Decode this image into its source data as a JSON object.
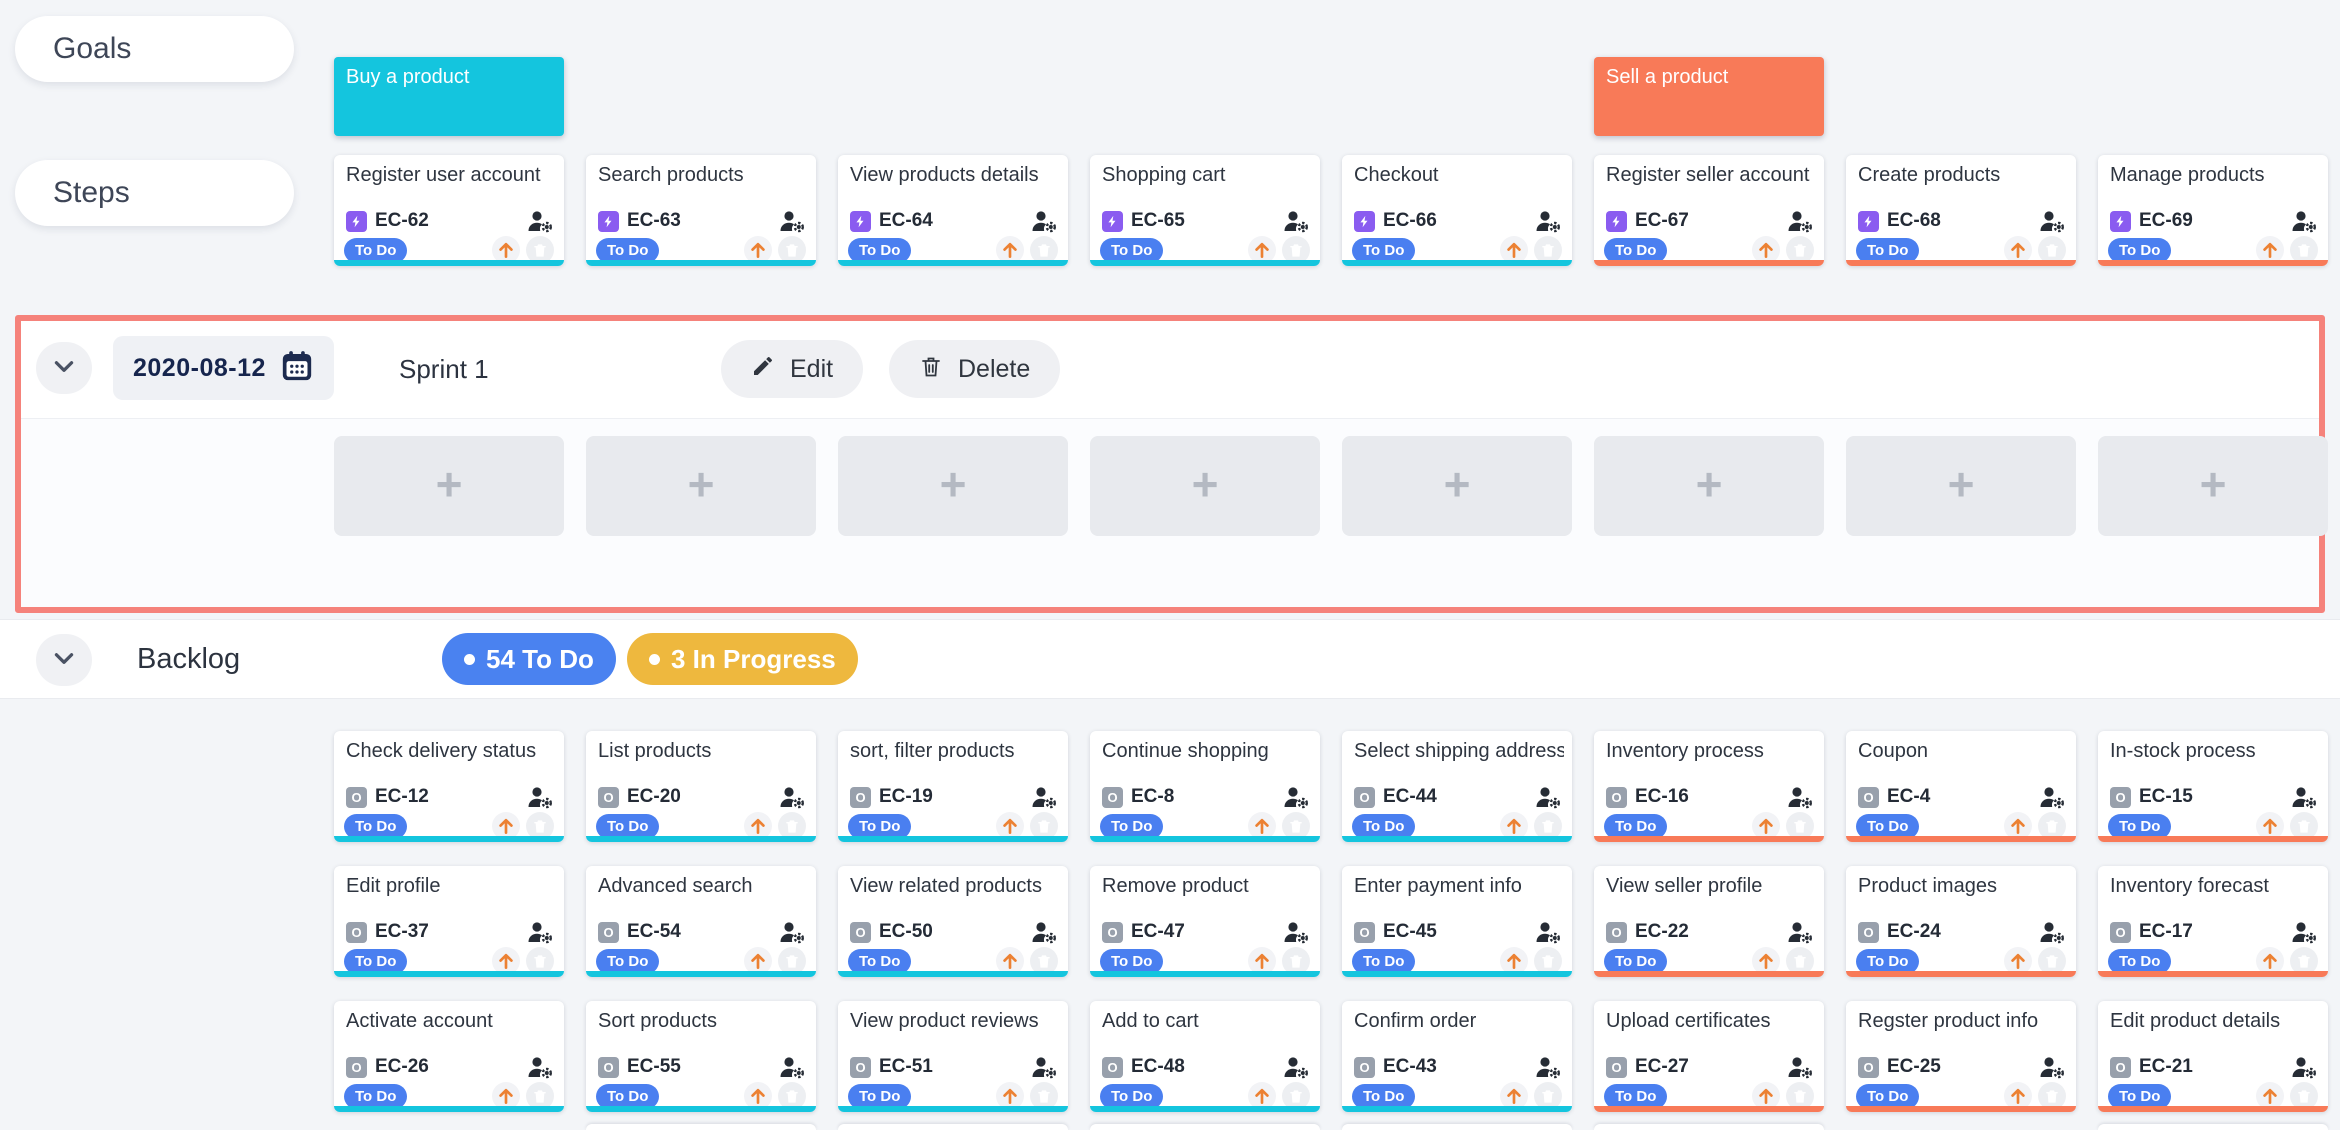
{
  "lanes": {
    "goals_label": "Goals",
    "steps_label": "Steps"
  },
  "themes": {
    "cyan": "#14c5de",
    "orange": "#f87a58"
  },
  "goal_cards": [
    {
      "title": "Buy a product",
      "column": 1,
      "color": "#14c5de"
    },
    {
      "title": "Sell a product",
      "column": 6,
      "color": "#f87a58"
    }
  ],
  "step_cards": [
    {
      "title": "Register user account",
      "id": "EC-62",
      "status": "To Do",
      "type": "epic",
      "theme": "#14c5de"
    },
    {
      "title": "Search products",
      "id": "EC-63",
      "status": "To Do",
      "type": "epic",
      "theme": "#14c5de"
    },
    {
      "title": "View products details",
      "id": "EC-64",
      "status": "To Do",
      "type": "epic",
      "theme": "#14c5de"
    },
    {
      "title": "Shopping cart",
      "id": "EC-65",
      "status": "To Do",
      "type": "epic",
      "theme": "#14c5de"
    },
    {
      "title": "Checkout",
      "id": "EC-66",
      "status": "To Do",
      "type": "epic",
      "theme": "#14c5de"
    },
    {
      "title": "Register seller account",
      "id": "EC-67",
      "status": "To Do",
      "type": "epic",
      "theme": "#f87a58"
    },
    {
      "title": "Create products",
      "id": "EC-68",
      "status": "To Do",
      "type": "epic",
      "theme": "#f87a58"
    },
    {
      "title": "Manage products",
      "id": "EC-69",
      "status": "To Do",
      "type": "epic",
      "theme": "#f87a58"
    }
  ],
  "sprint": {
    "date": "2020-08-12",
    "name": "Sprint 1",
    "edit_label": "Edit",
    "delete_label": "Delete",
    "empty_slot_count": 8,
    "border_color": "#f5827b"
  },
  "backlog": {
    "label": "Backlog",
    "badges": [
      {
        "text": "54 To Do",
        "bg": "#4a82f0"
      },
      {
        "text": "3 In Progress",
        "bg": "#eeb83e"
      }
    ],
    "rows": [
      [
        {
          "title": "Check delivery status",
          "id": "EC-12",
          "status": "To Do",
          "type": "story",
          "theme": "#14c5de"
        },
        {
          "title": "List products",
          "id": "EC-20",
          "status": "To Do",
          "type": "story",
          "theme": "#14c5de"
        },
        {
          "title": "sort, filter products",
          "id": "EC-19",
          "status": "To Do",
          "type": "story",
          "theme": "#14c5de"
        },
        {
          "title": "Continue shopping",
          "id": "EC-8",
          "status": "To Do",
          "type": "story",
          "theme": "#14c5de"
        },
        {
          "title": "Select shipping address",
          "id": "EC-44",
          "status": "To Do",
          "type": "story",
          "theme": "#14c5de"
        },
        {
          "title": "Inventory process",
          "id": "EC-16",
          "status": "To Do",
          "type": "story",
          "theme": "#f87a58"
        },
        {
          "title": "Coupon",
          "id": "EC-4",
          "status": "To Do",
          "type": "story",
          "theme": "#f87a58"
        },
        {
          "title": "In-stock process",
          "id": "EC-15",
          "status": "To Do",
          "type": "story",
          "theme": "#f87a58"
        }
      ],
      [
        {
          "title": "Edit profile",
          "id": "EC-37",
          "status": "To Do",
          "type": "story",
          "theme": "#14c5de"
        },
        {
          "title": "Advanced search",
          "id": "EC-54",
          "status": "To Do",
          "type": "story",
          "theme": "#14c5de"
        },
        {
          "title": "View related products",
          "id": "EC-50",
          "status": "To Do",
          "type": "story",
          "theme": "#14c5de"
        },
        {
          "title": "Remove product",
          "id": "EC-47",
          "status": "To Do",
          "type": "story",
          "theme": "#14c5de"
        },
        {
          "title": "Enter payment info",
          "id": "EC-45",
          "status": "To Do",
          "type": "story",
          "theme": "#14c5de"
        },
        {
          "title": "View seller profile",
          "id": "EC-22",
          "status": "To Do",
          "type": "story",
          "theme": "#f87a58"
        },
        {
          "title": "Product images",
          "id": "EC-24",
          "status": "To Do",
          "type": "story",
          "theme": "#f87a58"
        },
        {
          "title": "Inventory forecast",
          "id": "EC-17",
          "status": "To Do",
          "type": "story",
          "theme": "#f87a58"
        }
      ],
      [
        {
          "title": "Activate account",
          "id": "EC-26",
          "status": "To Do",
          "type": "story",
          "theme": "#14c5de"
        },
        {
          "title": "Sort products",
          "id": "EC-55",
          "status": "To Do",
          "type": "story",
          "theme": "#14c5de"
        },
        {
          "title": "View product reviews",
          "id": "EC-51",
          "status": "To Do",
          "type": "story",
          "theme": "#14c5de"
        },
        {
          "title": "Add to cart",
          "id": "EC-48",
          "status": "To Do",
          "type": "story",
          "theme": "#14c5de"
        },
        {
          "title": "Confirm order",
          "id": "EC-43",
          "status": "To Do",
          "type": "story",
          "theme": "#14c5de"
        },
        {
          "title": "Upload certificates",
          "id": "EC-27",
          "status": "To Do",
          "type": "story",
          "theme": "#f87a58"
        },
        {
          "title": "Regster product info",
          "id": "EC-25",
          "status": "To Do",
          "type": "story",
          "theme": "#f87a58"
        },
        {
          "title": "Edit product details",
          "id": "EC-21",
          "status": "To Do",
          "type": "story",
          "theme": "#f87a58"
        }
      ]
    ],
    "partial_next_row_columns": [
      2,
      3,
      4,
      5,
      6,
      8
    ]
  }
}
